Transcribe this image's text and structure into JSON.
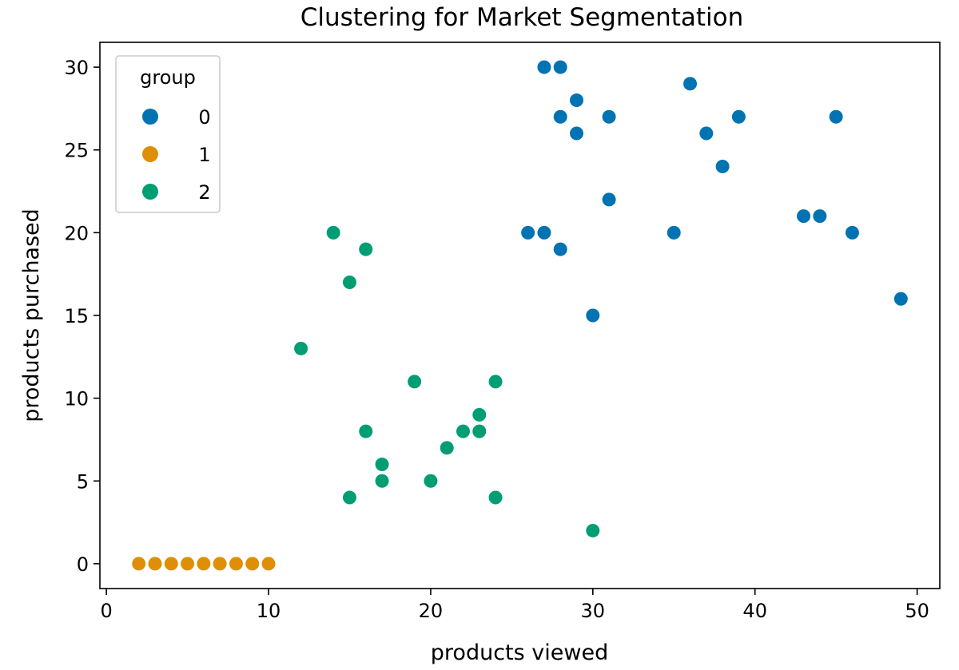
{
  "chart_data": {
    "type": "scatter",
    "title": "Clustering for Market Segmentation",
    "xlabel": "products viewed",
    "ylabel": "products purchased",
    "xlim": [
      -0.4,
      51.4
    ],
    "ylim": [
      -1.5,
      31.5
    ],
    "xticks": [
      0,
      10,
      20,
      30,
      40,
      50
    ],
    "yticks": [
      0,
      5,
      10,
      15,
      20,
      25,
      30
    ],
    "grid": false,
    "legend": {
      "title": "group",
      "placement": "top-left"
    },
    "series": [
      {
        "name": "0",
        "color": "#0173b2",
        "points": [
          [
            27,
            30
          ],
          [
            28,
            30
          ],
          [
            29,
            28
          ],
          [
            28,
            27
          ],
          [
            29,
            26
          ],
          [
            31,
            27
          ],
          [
            36,
            29
          ],
          [
            37,
            26
          ],
          [
            39,
            27
          ],
          [
            38,
            24
          ],
          [
            45,
            27
          ],
          [
            31,
            22
          ],
          [
            26,
            20
          ],
          [
            27,
            20
          ],
          [
            28,
            19
          ],
          [
            35,
            20
          ],
          [
            43,
            21
          ],
          [
            44,
            21
          ],
          [
            46,
            20
          ],
          [
            30,
            15
          ],
          [
            49,
            16
          ]
        ]
      },
      {
        "name": "1",
        "color": "#de8f05",
        "points": [
          [
            2,
            0
          ],
          [
            3,
            0
          ],
          [
            4,
            0
          ],
          [
            5,
            0
          ],
          [
            6,
            0
          ],
          [
            7,
            0
          ],
          [
            8,
            0
          ],
          [
            9,
            0
          ],
          [
            10,
            0
          ]
        ]
      },
      {
        "name": "2",
        "color": "#029e73",
        "points": [
          [
            14,
            20
          ],
          [
            16,
            19
          ],
          [
            15,
            17
          ],
          [
            12,
            13
          ],
          [
            19,
            11
          ],
          [
            24,
            11
          ],
          [
            23,
            9
          ],
          [
            16,
            8
          ],
          [
            22,
            8
          ],
          [
            23,
            8
          ],
          [
            21,
            7
          ],
          [
            17,
            6
          ],
          [
            17,
            5
          ],
          [
            20,
            5
          ],
          [
            15,
            4
          ],
          [
            24,
            4
          ],
          [
            30,
            2
          ]
        ]
      }
    ]
  }
}
